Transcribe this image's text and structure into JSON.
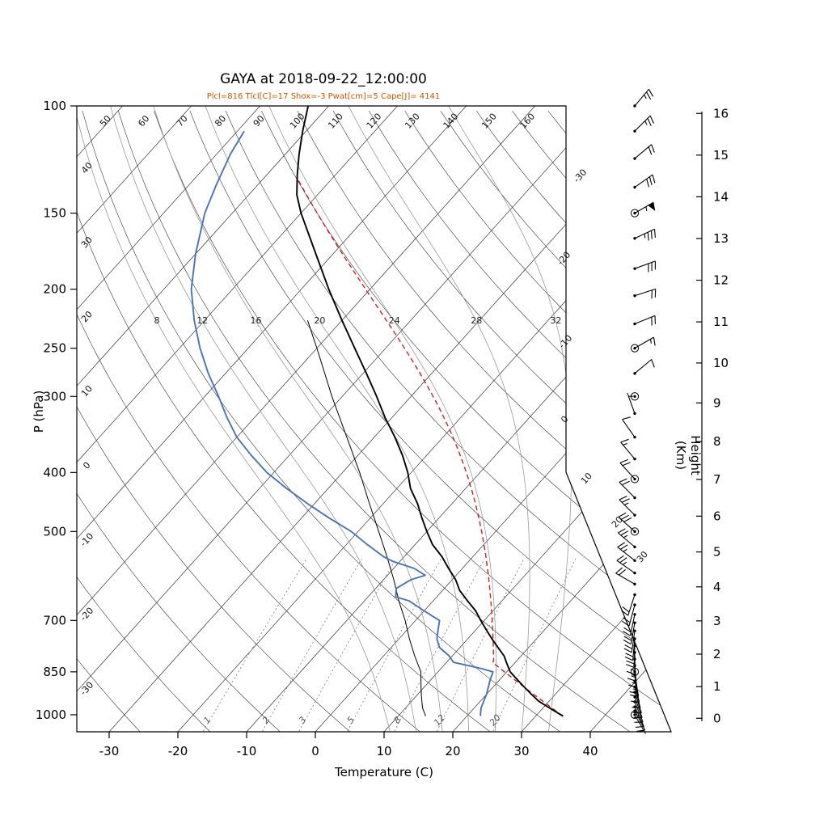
{
  "title": "GAYA at 2018-09-22_12:00:00",
  "subtitle": "Plcl=816 Tlcl[C]=17 Shox=-3 Pwat[cm]=5 Cape[J]= 4141",
  "colors": {
    "temperature": "#000000",
    "dewpoint": "#4a72b8",
    "wetbulb": "#000000",
    "parcel": "#cc2222",
    "subtitle": "#cc5500",
    "moist_adiabat": "#999999",
    "mixing_ratio": "#777777",
    "grid": "#333333"
  },
  "axes": {
    "pressure_label": "P (hPa)",
    "pressure_ticks": [
      100,
      150,
      200,
      250,
      300,
      400,
      500,
      700,
      850,
      1000
    ],
    "temperature_label": "Temperature (C)",
    "temperature_ticks": [
      -30,
      -20,
      -10,
      0,
      10,
      20,
      30,
      40
    ],
    "height_label": "Height (Km)",
    "height_ticks": [
      0,
      1,
      2,
      3,
      4,
      5,
      6,
      7,
      8,
      9,
      10,
      11,
      12,
      13,
      14,
      15,
      16
    ]
  },
  "chart_data": {
    "type": "skewt_log_p_sounding",
    "station": "GAYA",
    "datetime": "2018-09-22_12:00:00",
    "indices": {
      "Plcl": 816,
      "Tlcl_C": 17,
      "Shox": -3,
      "Pwat_cm": 5,
      "Cape_J": 4141
    },
    "grid": {
      "isotherms_c": [
        -120,
        -110,
        -100,
        -90,
        -80,
        -70,
        -60,
        -50,
        -40,
        -30,
        -20,
        -10,
        0,
        10,
        20,
        30,
        40
      ],
      "isotherm_labels_right": [
        -30,
        -20,
        -10,
        0,
        10,
        20,
        30
      ],
      "dry_adiabats_c": [
        -30,
        -20,
        -10,
        0,
        10,
        20,
        30,
        40,
        50,
        60,
        70,
        80,
        90,
        100,
        110,
        120,
        130,
        140,
        150,
        160
      ],
      "moist_adiabats_c": [
        8,
        12,
        16,
        20,
        24,
        28,
        32
      ],
      "mixing_ratio_gkg": [
        1,
        2,
        3,
        5,
        8,
        12,
        20
      ]
    },
    "series": {
      "temperature": {
        "name": "temperature",
        "points_p_t": [
          [
            1005,
            34
          ],
          [
            1000,
            33.5
          ],
          [
            975,
            31
          ],
          [
            950,
            28.5
          ],
          [
            925,
            26.5
          ],
          [
            900,
            24.5
          ],
          [
            875,
            22.5
          ],
          [
            850,
            20.5
          ],
          [
            825,
            19
          ],
          [
            800,
            17.5
          ],
          [
            775,
            15.5
          ],
          [
            750,
            13.5
          ],
          [
            725,
            11.5
          ],
          [
            700,
            9.5
          ],
          [
            675,
            7.5
          ],
          [
            650,
            5
          ],
          [
            625,
            2.5
          ],
          [
            600,
            0.5
          ],
          [
            575,
            -2
          ],
          [
            550,
            -4.5
          ],
          [
            525,
            -7.5
          ],
          [
            500,
            -10
          ],
          [
            475,
            -12.5
          ],
          [
            450,
            -15
          ],
          [
            425,
            -18
          ],
          [
            400,
            -20.5
          ],
          [
            375,
            -23.5
          ],
          [
            350,
            -27
          ],
          [
            325,
            -31
          ],
          [
            300,
            -35
          ],
          [
            275,
            -39.5
          ],
          [
            250,
            -44.5
          ],
          [
            225,
            -50
          ],
          [
            200,
            -56
          ],
          [
            175,
            -62.5
          ],
          [
            150,
            -70
          ],
          [
            140,
            -73
          ],
          [
            130,
            -75.5
          ],
          [
            120,
            -78
          ],
          [
            110,
            -80.5
          ],
          [
            100,
            -83
          ]
        ]
      },
      "dewpoint": {
        "name": "dewpoint",
        "points_p_t": [
          [
            1005,
            22
          ],
          [
            1000,
            21.8
          ],
          [
            975,
            21
          ],
          [
            950,
            20.5
          ],
          [
            925,
            20
          ],
          [
            900,
            19.3
          ],
          [
            875,
            18.6
          ],
          [
            850,
            18
          ],
          [
            840,
            16
          ],
          [
            820,
            11
          ],
          [
            800,
            9.5
          ],
          [
            775,
            7
          ],
          [
            750,
            5.5
          ],
          [
            725,
            4.5
          ],
          [
            700,
            3.5
          ],
          [
            675,
            0
          ],
          [
            650,
            -3.5
          ],
          [
            640,
            -6
          ],
          [
            620,
            -7
          ],
          [
            600,
            -6
          ],
          [
            590,
            -4.5
          ],
          [
            575,
            -7
          ],
          [
            560,
            -11
          ],
          [
            550,
            -13
          ],
          [
            525,
            -17
          ],
          [
            500,
            -21
          ],
          [
            475,
            -26
          ],
          [
            450,
            -31
          ],
          [
            425,
            -36
          ],
          [
            400,
            -41
          ],
          [
            375,
            -45.5
          ],
          [
            350,
            -50
          ],
          [
            325,
            -54
          ],
          [
            300,
            -58
          ],
          [
            275,
            -62.5
          ],
          [
            250,
            -67
          ],
          [
            225,
            -71.5
          ],
          [
            200,
            -76
          ],
          [
            175,
            -80
          ],
          [
            150,
            -84
          ],
          [
            135,
            -86
          ],
          [
            120,
            -88
          ],
          [
            110,
            -89
          ]
        ]
      },
      "wetbulb": {
        "name": "wetbulb",
        "points_p_t": [
          [
            1005,
            14
          ],
          [
            975,
            12.5
          ],
          [
            950,
            11.5
          ],
          [
            925,
            10.5
          ],
          [
            900,
            9.5
          ],
          [
            850,
            7.5
          ],
          [
            800,
            4.5
          ],
          [
            750,
            1.5
          ],
          [
            700,
            -1.5
          ],
          [
            650,
            -5
          ],
          [
            600,
            -8.5
          ],
          [
            550,
            -12.5
          ],
          [
            500,
            -17
          ],
          [
            450,
            -22
          ],
          [
            400,
            -27.5
          ],
          [
            350,
            -34
          ],
          [
            300,
            -41.5
          ],
          [
            250,
            -50
          ],
          [
            225,
            -55
          ]
        ]
      },
      "parcel": {
        "name": "parcel",
        "surface_p": 1005,
        "surface_t": 34,
        "lcl_p": 816,
        "top_p": 130,
        "dashed": true
      }
    },
    "wind_barbs_p_dir_spd_circle": [
      [
        1000,
        150,
        5,
        1
      ],
      [
        985,
        152,
        8,
        0
      ],
      [
        970,
        155,
        8,
        0
      ],
      [
        952,
        158,
        10,
        0
      ],
      [
        935,
        160,
        10,
        0
      ],
      [
        918,
        162,
        10,
        0
      ],
      [
        900,
        165,
        12,
        0
      ],
      [
        880,
        168,
        12,
        0
      ],
      [
        860,
        170,
        12,
        0
      ],
      [
        850,
        172,
        15,
        1
      ],
      [
        830,
        175,
        15,
        0
      ],
      [
        810,
        178,
        15,
        0
      ],
      [
        790,
        180,
        15,
        0
      ],
      [
        770,
        182,
        18,
        0
      ],
      [
        750,
        185,
        18,
        0
      ],
      [
        728,
        188,
        18,
        0
      ],
      [
        706,
        190,
        20,
        0
      ],
      [
        684,
        192,
        20,
        0
      ],
      [
        660,
        195,
        20,
        0
      ],
      [
        635,
        198,
        22,
        0
      ],
      [
        610,
        300,
        22,
        0
      ],
      [
        585,
        305,
        25,
        0
      ],
      [
        558,
        308,
        25,
        0
      ],
      [
        530,
        310,
        25,
        0
      ],
      [
        500,
        312,
        28,
        1
      ],
      [
        470,
        315,
        25,
        0
      ],
      [
        440,
        315,
        22,
        0
      ],
      [
        410,
        318,
        20,
        1
      ],
      [
        380,
        320,
        15,
        0
      ],
      [
        350,
        325,
        10,
        0
      ],
      [
        320,
        340,
        5,
        0
      ],
      [
        300,
        30,
        3,
        1
      ],
      [
        275,
        50,
        10,
        0
      ],
      [
        250,
        60,
        15,
        1
      ],
      [
        228,
        68,
        18,
        0
      ],
      [
        205,
        72,
        22,
        0
      ],
      [
        185,
        70,
        28,
        0
      ],
      [
        165,
        65,
        35,
        0
      ],
      [
        150,
        60,
        55,
        1
      ],
      [
        136,
        55,
        30,
        0
      ],
      [
        122,
        50,
        22,
        0
      ],
      [
        110,
        45,
        25,
        0
      ],
      [
        100,
        40,
        25,
        0
      ]
    ]
  }
}
